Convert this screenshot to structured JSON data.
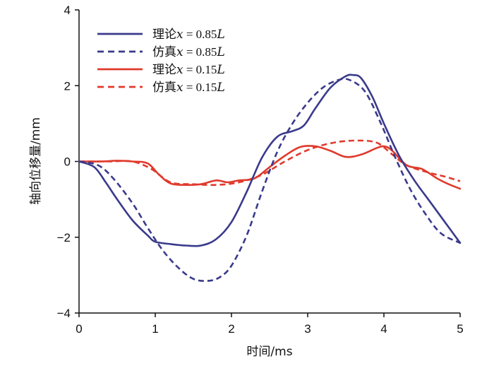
{
  "chart_data": {
    "type": "line",
    "xlabel": "时间/ms",
    "ylabel": "轴向位移量/mm",
    "xlim": [
      0,
      5
    ],
    "ylim": [
      -4,
      4
    ],
    "xticks": [
      0,
      1,
      2,
      3,
      4,
      5
    ],
    "yticks": [
      -4,
      -2,
      0,
      2,
      4
    ],
    "ytick_labels": [
      "−4",
      "−2",
      "0",
      "2",
      "4"
    ],
    "grid": false,
    "legend_position": "top-left",
    "colors": {
      "blue": "#3a3a8c",
      "red": "#e03a2c"
    },
    "series": [
      {
        "name": "理论x = 0.85L",
        "name_parts": {
          "prefix": "理论",
          "var": "x",
          "eq": " = 0.85",
          "unit": "L"
        },
        "color": "#3a3a8c",
        "style": "solid",
        "x": [
          0,
          0.2,
          0.35,
          0.5,
          0.7,
          0.9,
          1.0,
          1.2,
          1.4,
          1.6,
          1.8,
          2.0,
          2.2,
          2.4,
          2.6,
          2.8,
          2.95,
          3.1,
          3.3,
          3.5,
          3.6,
          3.7,
          3.85,
          4.0,
          4.2,
          4.4,
          4.6,
          4.8,
          5.0
        ],
        "y": [
          0,
          -0.15,
          -0.55,
          -1.0,
          -1.55,
          -1.95,
          -2.12,
          -2.18,
          -2.22,
          -2.22,
          -2.05,
          -1.6,
          -0.8,
          0.1,
          0.65,
          0.8,
          0.95,
          1.4,
          1.95,
          2.25,
          2.28,
          2.2,
          1.7,
          1.0,
          0.15,
          -0.5,
          -1.05,
          -1.6,
          -2.15
        ]
      },
      {
        "name": "仿真x = 0.85L",
        "name_parts": {
          "prefix": "仿真",
          "var": "x",
          "eq": " = 0.85",
          "unit": "L"
        },
        "color": "#3a3a8c",
        "style": "dashed",
        "x": [
          0,
          0.25,
          0.45,
          0.7,
          0.9,
          1.1,
          1.3,
          1.5,
          1.7,
          1.85,
          2.0,
          2.2,
          2.4,
          2.6,
          2.8,
          3.0,
          3.2,
          3.4,
          3.55,
          3.75,
          3.95,
          4.15,
          4.35,
          4.55,
          4.75,
          5.0
        ],
        "y": [
          0,
          -0.1,
          -0.45,
          -1.1,
          -1.75,
          -2.35,
          -2.8,
          -3.1,
          -3.15,
          -3.05,
          -2.75,
          -1.95,
          -0.8,
          0.25,
          1.0,
          1.55,
          1.95,
          2.15,
          2.15,
          1.85,
          1.05,
          0.1,
          -0.75,
          -1.4,
          -1.9,
          -2.15
        ]
      },
      {
        "name": "理论x = 0.15L",
        "name_parts": {
          "prefix": "理论",
          "var": "x",
          "eq": " = 0.15",
          "unit": "L"
        },
        "color": "#e03a2c",
        "style": "solid",
        "x": [
          0,
          0.3,
          0.5,
          0.7,
          0.9,
          1.05,
          1.2,
          1.4,
          1.6,
          1.8,
          1.95,
          2.1,
          2.3,
          2.5,
          2.7,
          2.9,
          3.1,
          3.3,
          3.5,
          3.7,
          3.9,
          4.0,
          4.1,
          4.3,
          4.5,
          4.7,
          4.85,
          5.0
        ],
        "y": [
          0,
          0,
          0.02,
          0.0,
          -0.05,
          -0.35,
          -0.58,
          -0.62,
          -0.6,
          -0.5,
          -0.55,
          -0.5,
          -0.45,
          -0.15,
          0.15,
          0.38,
          0.4,
          0.28,
          0.12,
          0.18,
          0.35,
          0.4,
          0.3,
          -0.1,
          -0.2,
          -0.45,
          -0.6,
          -0.72
        ]
      },
      {
        "name": "仿真x = 0.15L",
        "name_parts": {
          "prefix": "仿真",
          "var": "x",
          "eq": " = 0.15",
          "unit": "L"
        },
        "color": "#e03a2c",
        "style": "dashed",
        "x": [
          0,
          0.4,
          0.7,
          0.95,
          1.2,
          1.5,
          1.8,
          2.1,
          2.4,
          2.7,
          3.0,
          3.3,
          3.6,
          3.9,
          4.1,
          4.3,
          4.6,
          4.8,
          5.0
        ],
        "y": [
          0,
          0,
          0,
          -0.2,
          -0.55,
          -0.6,
          -0.62,
          -0.55,
          -0.35,
          0.0,
          0.3,
          0.48,
          0.55,
          0.5,
          0.2,
          -0.1,
          -0.3,
          -0.4,
          -0.52
        ]
      }
    ]
  }
}
